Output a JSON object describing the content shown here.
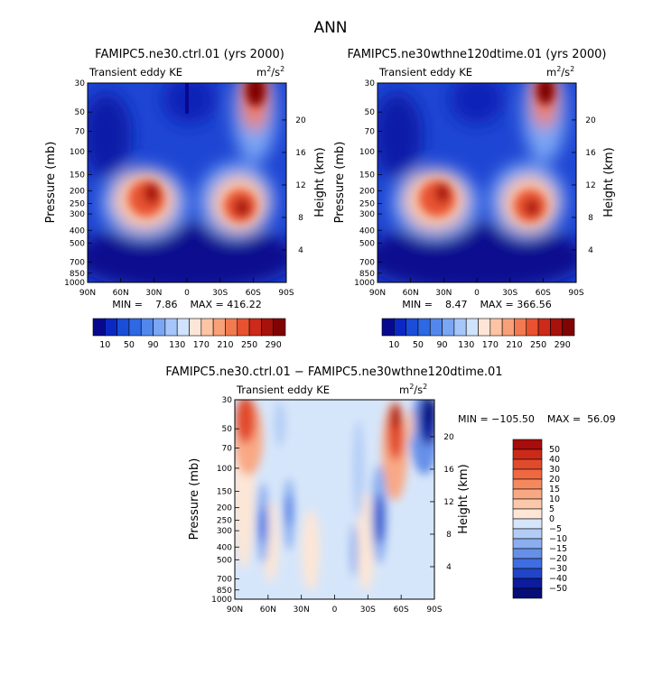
{
  "page_title": "ANN",
  "chart_data": [
    {
      "type": "heatmap",
      "title": "FAMIPC5.ne30.ctrl.01 (yrs 2000)",
      "subtitle": "Transient eddy KE",
      "units": "m²/s²",
      "units_base": "m",
      "units_sup1": "2",
      "units_mid": "/s",
      "units_sup2": "2",
      "xlabel": "",
      "ylabel": "Pressure (mb)",
      "ylabel_right": "Height (km)",
      "x_ticks": [
        "90N",
        "60N",
        "30N",
        "0",
        "30S",
        "60S",
        "90S"
      ],
      "y_ticks": [
        "30",
        "50",
        "70",
        "100",
        "150",
        "200",
        "250",
        "300",
        "400",
        "500",
        "700",
        "850",
        "1000"
      ],
      "y_ticks_right": [
        "20",
        "16",
        "12",
        "8",
        "4"
      ],
      "min_max_text": "MIN =    7.86    MAX = 416.22",
      "min": 7.86,
      "max": 416.22,
      "colorbar_labels": [
        "10",
        "50",
        "90",
        "130",
        "170",
        "210",
        "250",
        "290"
      ],
      "colorbar_colors": [
        "#08088f",
        "#0c28c4",
        "#1a4ed8",
        "#2e68e2",
        "#5288ee",
        "#7aa6f4",
        "#a6c6fa",
        "#d0e2fc",
        "#fde6d8",
        "#fcc4a4",
        "#f8a078",
        "#f27a50",
        "#e85230",
        "#cc2a1a",
        "#a8120c",
        "#800404"
      ],
      "features": [
        {
          "label": "NH jet max",
          "lat": 28,
          "pressure": 230,
          "value": 300
        },
        {
          "label": "SH jet max",
          "lat": -45,
          "pressure": 270,
          "value": 300
        },
        {
          "label": "SH upper max",
          "lat": -58,
          "pressure": 40,
          "value": 416
        }
      ]
    },
    {
      "type": "heatmap",
      "title": "FAMIPC5.ne30wthne120dtime.01 (yrs 2000)",
      "subtitle": "Transient eddy KE",
      "units": "m²/s²",
      "units_base": "m",
      "units_sup1": "2",
      "units_mid": "/s",
      "units_sup2": "2",
      "xlabel": "",
      "ylabel": "Pressure (mb)",
      "ylabel_right": "Height (km)",
      "x_ticks": [
        "90N",
        "60N",
        "30N",
        "0",
        "30S",
        "60S",
        "90S"
      ],
      "y_ticks": [
        "30",
        "50",
        "70",
        "100",
        "150",
        "200",
        "250",
        "300",
        "400",
        "500",
        "700",
        "850",
        "1000"
      ],
      "y_ticks_right": [
        "20",
        "16",
        "12",
        "8",
        "4"
      ],
      "min_max_text": "MIN =    8.47    MAX = 366.56",
      "min": 8.47,
      "max": 366.56,
      "colorbar_labels": [
        "10",
        "50",
        "90",
        "130",
        "170",
        "210",
        "250",
        "290"
      ],
      "colorbar_colors": [
        "#08088f",
        "#0c28c4",
        "#1a4ed8",
        "#2e68e2",
        "#5288ee",
        "#7aa6f4",
        "#a6c6fa",
        "#d0e2fc",
        "#fde6d8",
        "#fcc4a4",
        "#f8a078",
        "#f27a50",
        "#e85230",
        "#cc2a1a",
        "#a8120c",
        "#800404"
      ],
      "features": [
        {
          "label": "NH jet max",
          "lat": 28,
          "pressure": 230,
          "value": 290
        },
        {
          "label": "SH jet max",
          "lat": -45,
          "pressure": 270,
          "value": 290
        },
        {
          "label": "SH upper max",
          "lat": -58,
          "pressure": 40,
          "value": 366
        }
      ]
    },
    {
      "type": "heatmap",
      "title": "FAMIPC5.ne30.ctrl.01 − FAMIPC5.ne30wthne120dtime.01",
      "subtitle": "Transient eddy KE",
      "units": "m²/s²",
      "units_base": "m",
      "units_sup1": "2",
      "units_mid": "/s",
      "units_sup2": "2",
      "xlabel": "",
      "ylabel": "Pressure (mb)",
      "ylabel_right": "Height (km)",
      "x_ticks": [
        "90N",
        "60N",
        "30N",
        "0",
        "30S",
        "60S",
        "90S"
      ],
      "y_ticks": [
        "30",
        "50",
        "70",
        "100",
        "150",
        "200",
        "250",
        "300",
        "400",
        "500",
        "700",
        "850",
        "1000"
      ],
      "y_ticks_right": [
        "20",
        "16",
        "12",
        "8",
        "4"
      ],
      "min_max_text": "MIN = −105.50    MAX =  56.09",
      "min": -105.5,
      "max": 56.09,
      "colorbar_labels": [
        "50",
        "40",
        "30",
        "20",
        "15",
        "10",
        "5",
        "0",
        "−5",
        "−10",
        "−15",
        "−20",
        "−30",
        "−40",
        "−50"
      ],
      "colorbar_colors": [
        "#a80c0c",
        "#cc2a18",
        "#e24a2c",
        "#f06840",
        "#f6885e",
        "#f9a884",
        "#fcc8ac",
        "#fde6d6",
        "#d6e6fa",
        "#b2ccf6",
        "#8aaef0",
        "#6690e8",
        "#3e6ee0",
        "#2244c8",
        "#0c1c9c",
        "#060c78"
      ],
      "features": [
        {
          "label": "NH upper positive",
          "lat": 78,
          "pressure": 40,
          "value": 45
        },
        {
          "label": "SH upper positive",
          "lat": -57,
          "pressure": 45,
          "value": 56
        },
        {
          "label": "SH polar negative",
          "lat": -82,
          "pressure": 40,
          "value": -105
        },
        {
          "label": "SH midlat negative",
          "lat": -42,
          "pressure": 260,
          "value": -30
        }
      ]
    }
  ]
}
